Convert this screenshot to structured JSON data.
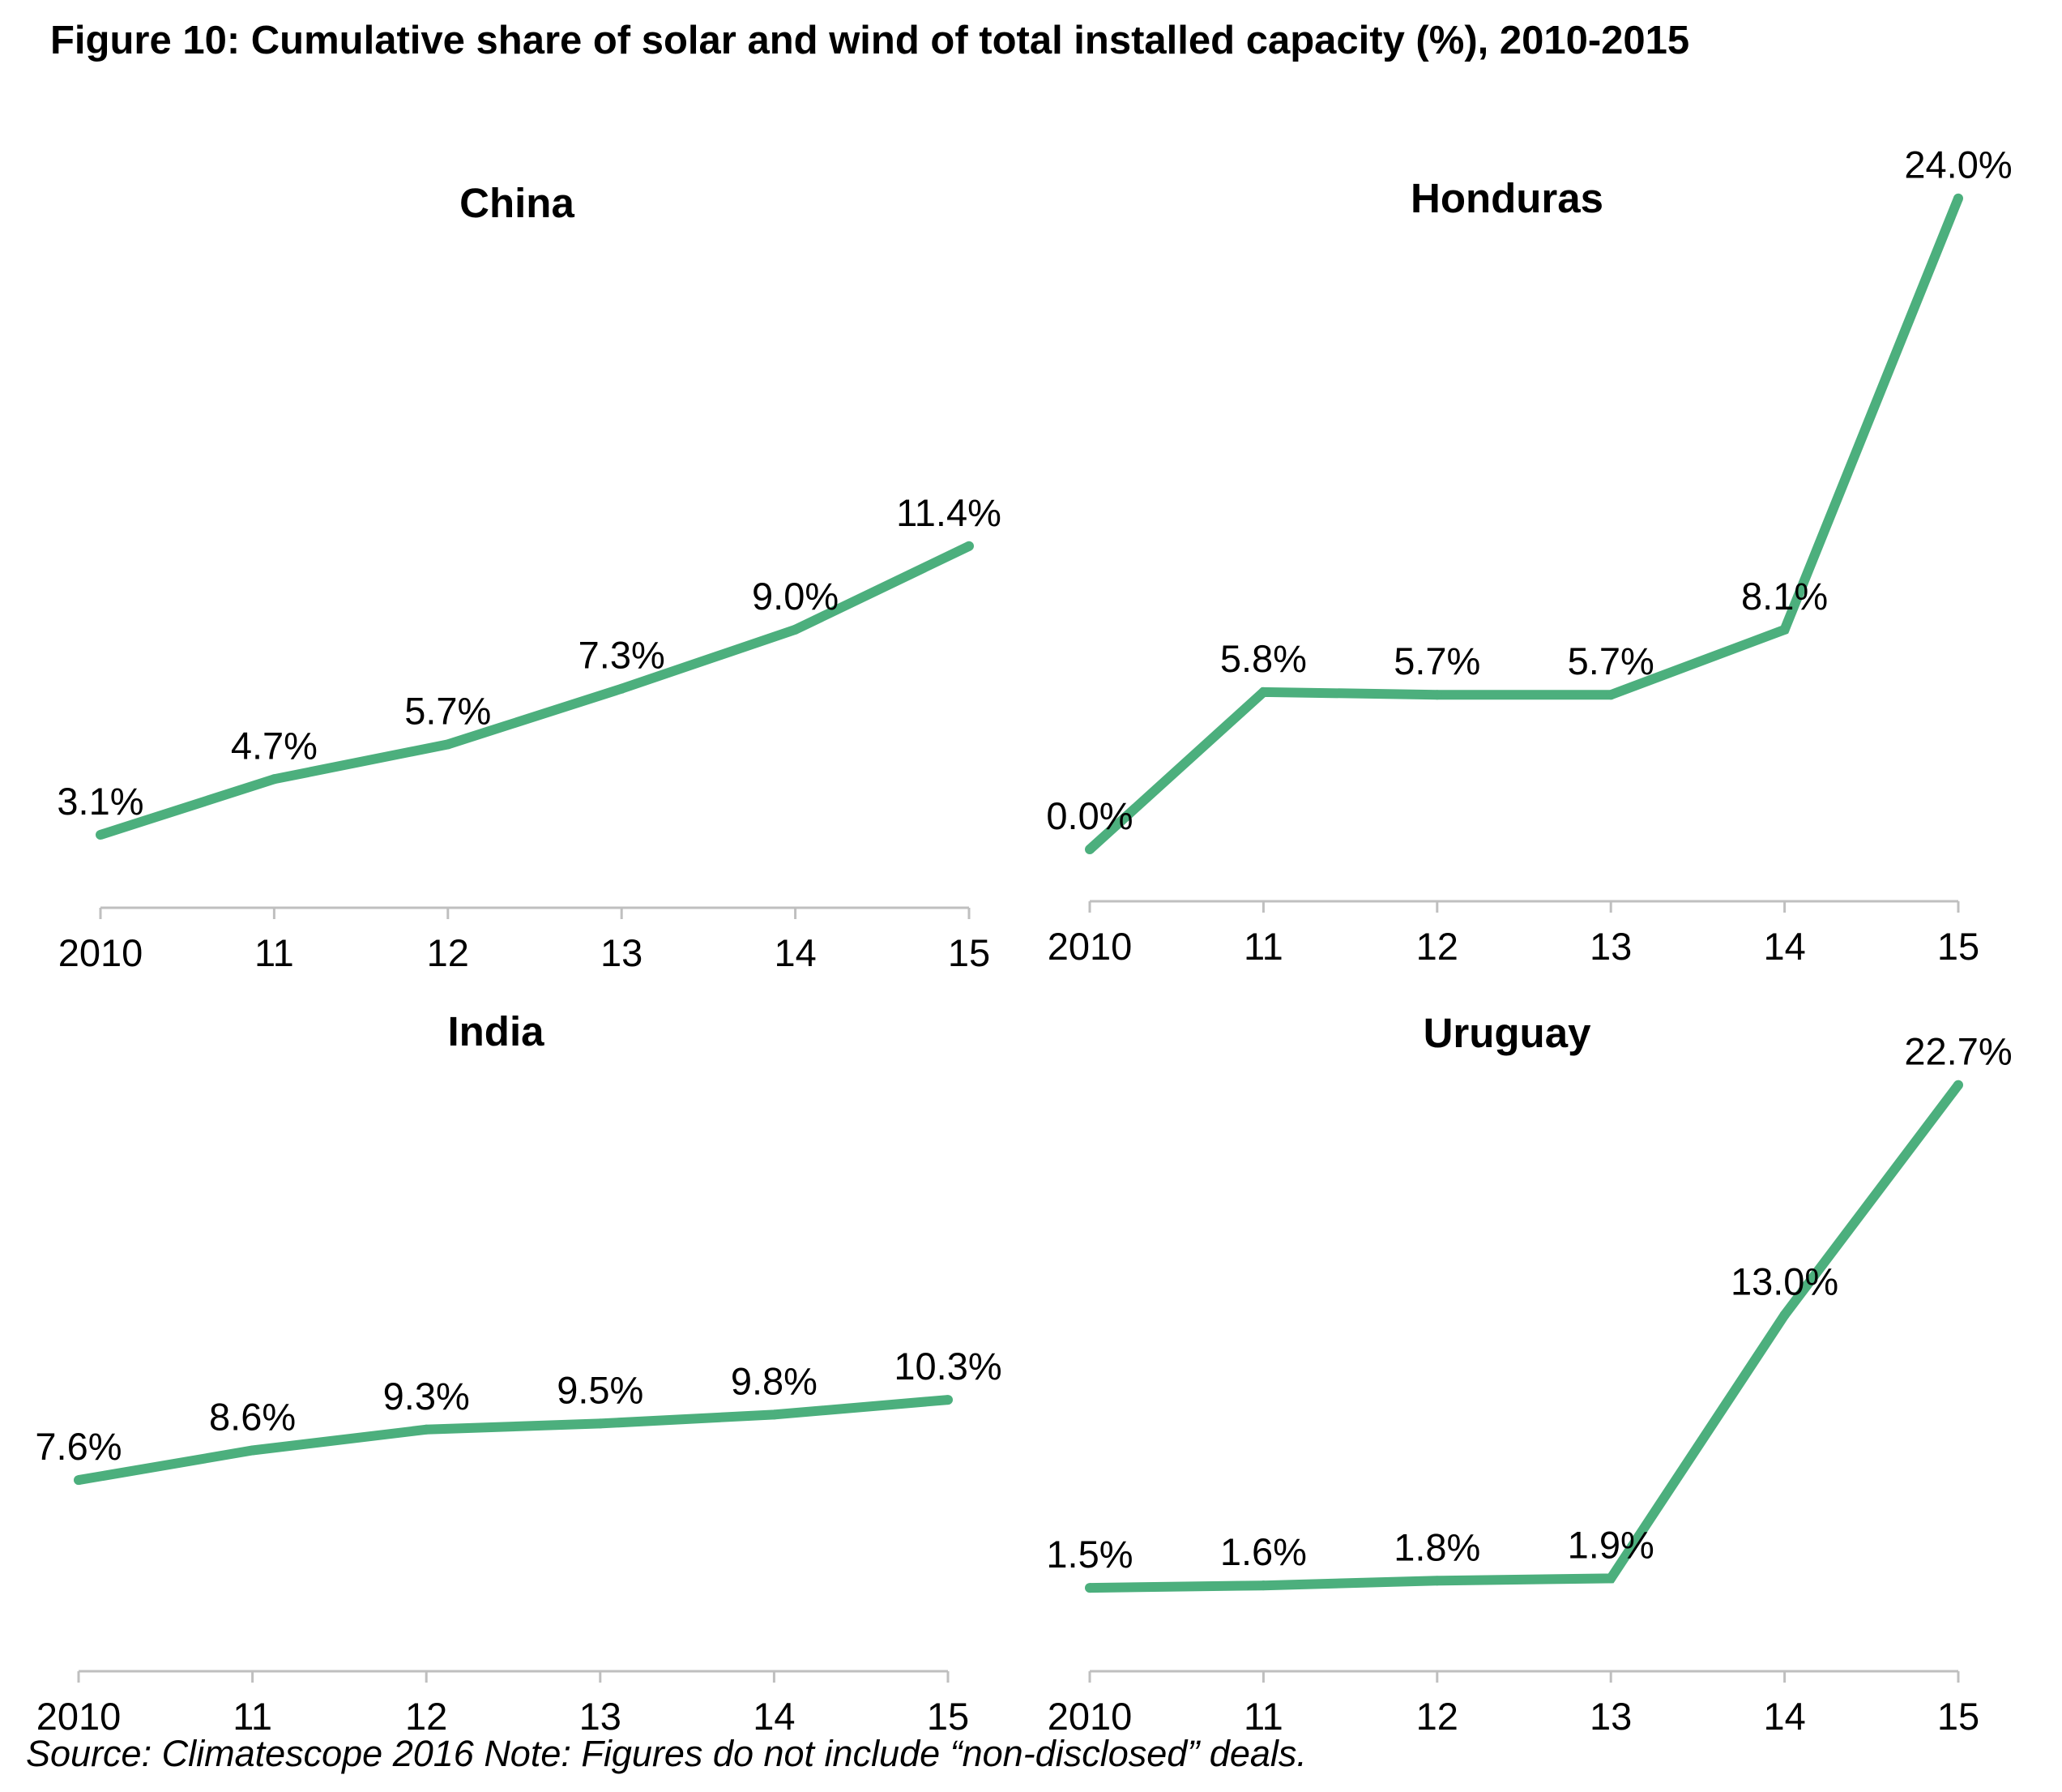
{
  "figure": {
    "title": "Figure 10: Cumulative share of solar and wind of total installed capacity (%), 2010-2015",
    "footer": "Source: Climatescope 2016 Note: Figures do not include “non-disclosed” deals."
  },
  "colors": {
    "line": "#4caf7d",
    "axis": "#bfbfbf",
    "text": "#000000"
  },
  "chart_data": [
    {
      "type": "line",
      "title": "China",
      "categories": [
        "2010",
        "11",
        "12",
        "13",
        "14",
        "15"
      ],
      "values": [
        3.1,
        4.7,
        5.7,
        7.3,
        9.0,
        11.4
      ],
      "labels": [
        "3.1%",
        "4.7%",
        "5.7%",
        "7.3%",
        "9.0%",
        "11.4%"
      ],
      "unit": "%",
      "ylim": [
        0,
        12.7
      ],
      "xlabel": "",
      "ylabel": "",
      "grid": false,
      "legend": "none"
    },
    {
      "type": "line",
      "title": "Honduras",
      "categories": [
        "2010",
        "11",
        "12",
        "13",
        "14",
        "15"
      ],
      "values": [
        0.0,
        5.8,
        5.7,
        5.7,
        8.1,
        24.0
      ],
      "labels": [
        "0.0%",
        "5.8%",
        "5.7%",
        "5.7%",
        "8.1%",
        "24.0%"
      ],
      "unit": "%",
      "ylim": [
        0,
        24.5
      ],
      "xlabel": "",
      "ylabel": "",
      "grid": false,
      "legend": "none"
    },
    {
      "type": "line",
      "title": "India",
      "categories": [
        "2010",
        "11",
        "12",
        "13",
        "14",
        "15"
      ],
      "values": [
        7.6,
        8.6,
        9.3,
        9.5,
        9.8,
        10.3
      ],
      "labels": [
        "7.6%",
        "8.6%",
        "9.3%",
        "9.5%",
        "9.8%",
        "10.3%"
      ],
      "unit": "%",
      "ylim": [
        0,
        27.5
      ],
      "xlabel": "",
      "ylabel": "",
      "grid": false,
      "legend": "none"
    },
    {
      "type": "line",
      "title": "Uruguay",
      "categories": [
        "2010",
        "11",
        "12",
        "13",
        "14",
        "15"
      ],
      "values": [
        1.5,
        1.6,
        1.8,
        1.9,
        13.0,
        22.7
      ],
      "labels": [
        "1.5%",
        "1.6%",
        "1.8%",
        "1.9%",
        "13.0%",
        "22.7%"
      ],
      "unit": "%",
      "ylim": [
        0,
        24.6
      ],
      "xlabel": "",
      "ylabel": "",
      "grid": false,
      "legend": "none"
    }
  ]
}
